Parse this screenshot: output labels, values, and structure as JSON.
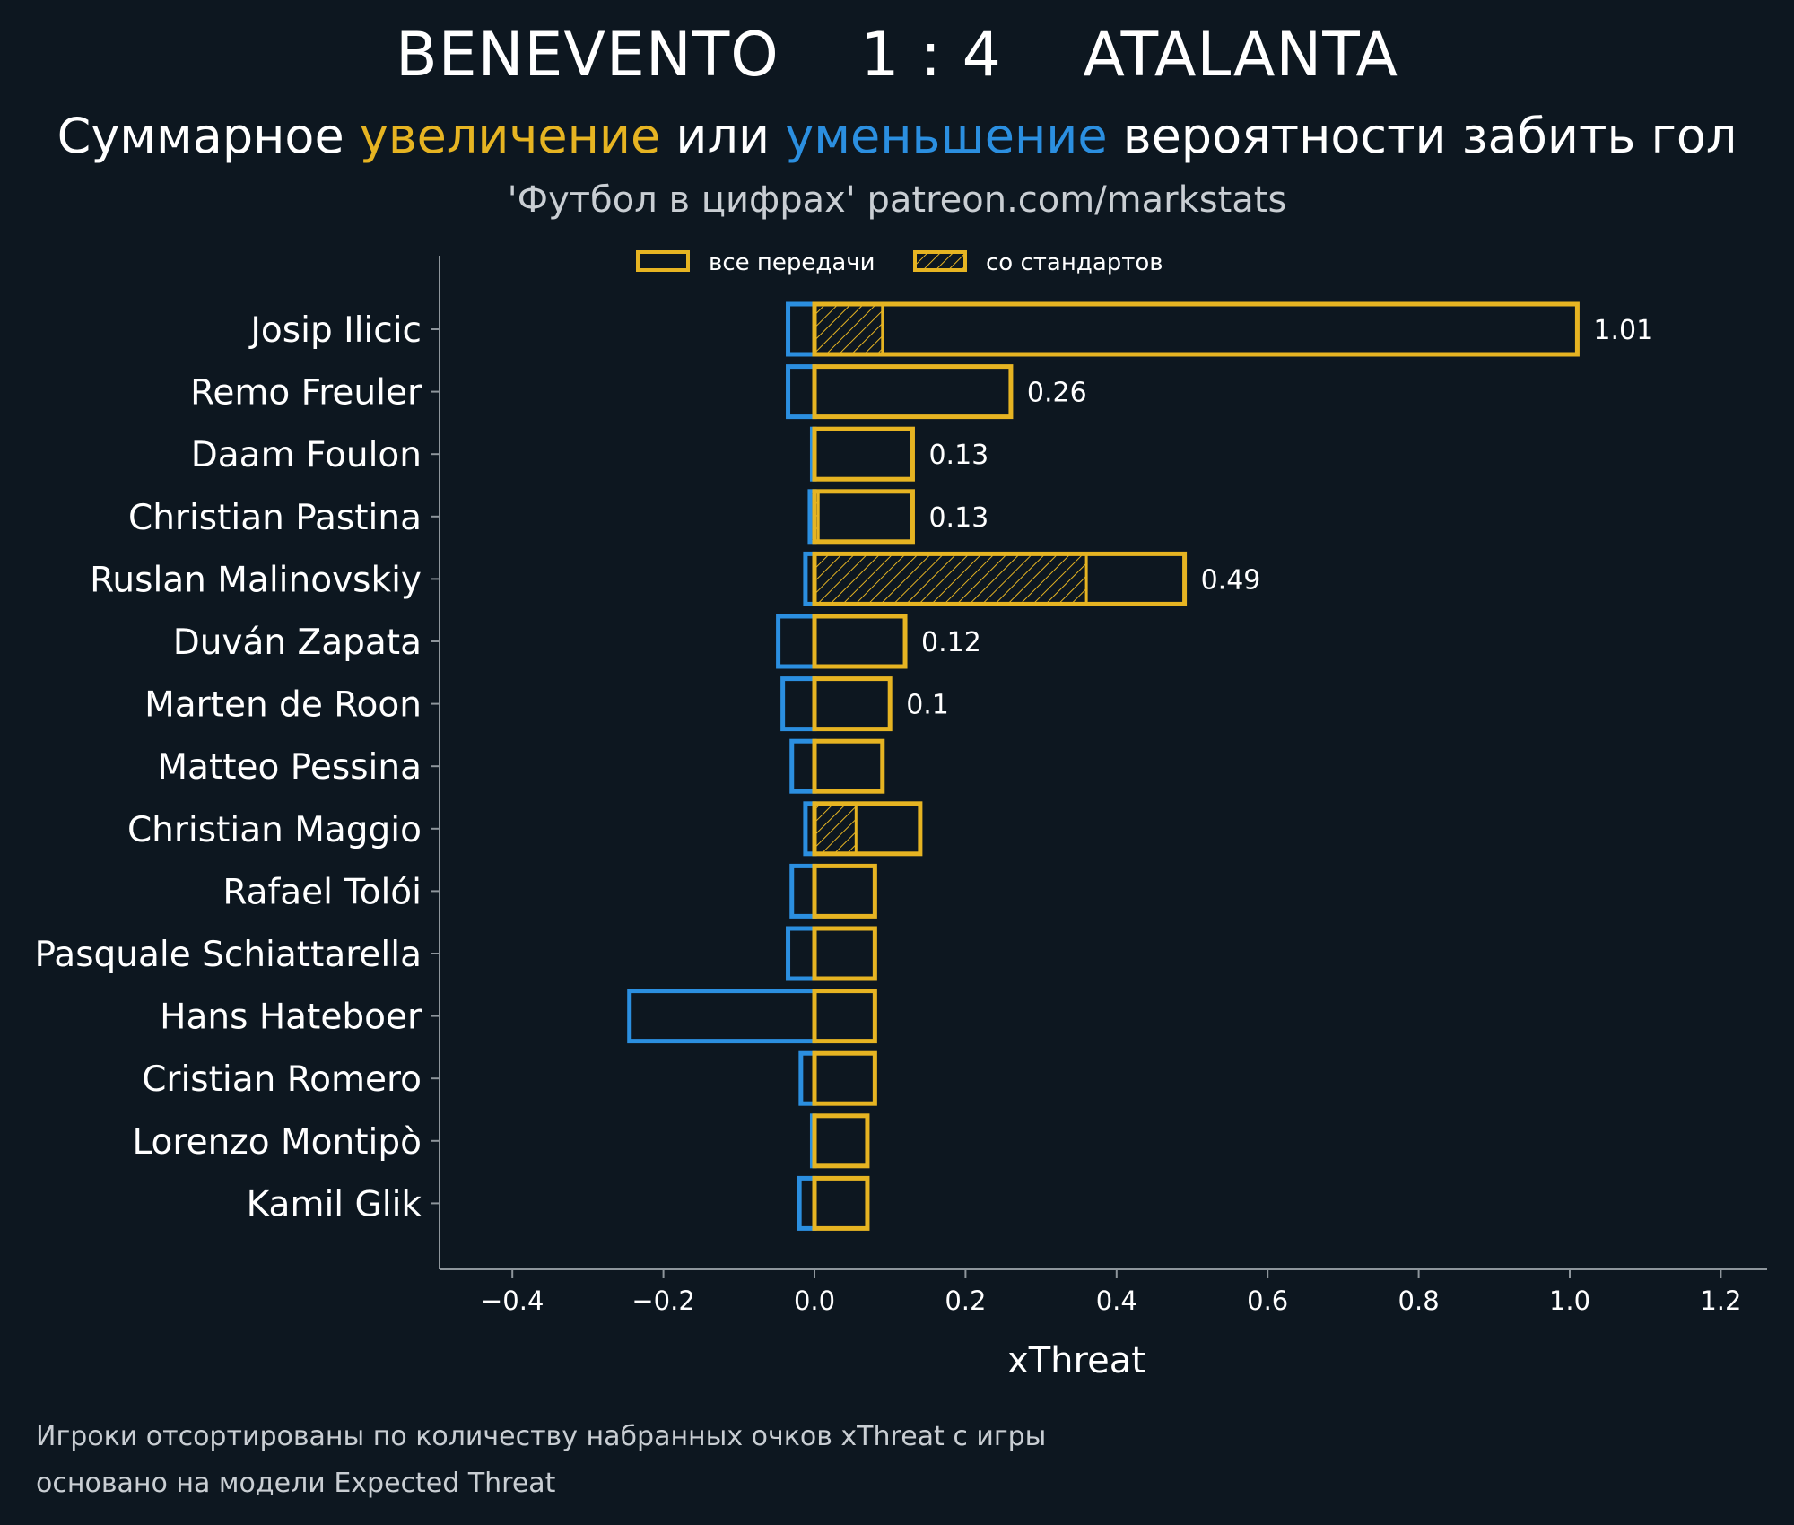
{
  "header": {
    "title": "BENEVENTO    1 : 4    ATALANTA",
    "subtitle_part1": "Суммарное ",
    "subtitle_increase": "увеличение",
    "subtitle_part2": " или ",
    "subtitle_decrease": "уменьшение",
    "subtitle_part3": " вероятности забить гол",
    "source": "'Футбол в цифрах' patreon.com/markstats"
  },
  "footnotes": {
    "line1": "Игроки отсортированы по количеству набранных очков xThreat с игры",
    "line2": "основано на модели Expected Threat"
  },
  "colors": {
    "background": "#0d1720",
    "increase": "#e6b422",
    "decrease": "#2b8fe0",
    "axis": "#8e969c"
  },
  "chart_data": {
    "type": "bar",
    "orientation": "horizontal",
    "xlabel": "xThreat",
    "ylabel": "",
    "xlim": [
      -0.5,
      1.26
    ],
    "xticks": [
      -0.4,
      -0.2,
      0.0,
      0.2,
      0.4,
      0.6,
      0.8,
      1.0,
      1.2
    ],
    "xtick_labels": [
      "−0.4",
      "−0.2",
      "0.0",
      "0.2",
      "0.4",
      "0.6",
      "0.8",
      "1.0",
      "1.2"
    ],
    "grid": false,
    "legend": {
      "placement": "top-center",
      "entries": [
        "все передачи",
        "со стандартов"
      ]
    },
    "categories": [
      "Josip Ilicic",
      "Remo Freuler",
      "Daam Foulon",
      "Christian Pastina",
      "Ruslan Malinovskiy",
      "Duván Zapata",
      "Marten de Roon",
      "Matteo Pessina",
      "Christian Maggio",
      "Rafael Tolói",
      "Pasquale Schiattarella",
      "Hans Hateboer",
      "Cristian Romero",
      "Lorenzo Montipò",
      "Kamil Glik"
    ],
    "series": [
      {
        "name": "все передачи",
        "role": "increase",
        "values": [
          1.01,
          0.26,
          0.13,
          0.13,
          0.49,
          0.12,
          0.1,
          0.09,
          0.14,
          0.08,
          0.08,
          0.08,
          0.08,
          0.07,
          0.07
        ]
      },
      {
        "name": "со стандартов",
        "role": "increase-set-pieces",
        "values": [
          0.09,
          0,
          0,
          0.005,
          0.36,
          0,
          0,
          0,
          0.055,
          0,
          0,
          0,
          0,
          0,
          0
        ]
      },
      {
        "role": "decrease",
        "values": [
          -0.035,
          -0.035,
          -0.003,
          -0.006,
          -0.012,
          -0.048,
          -0.042,
          -0.03,
          -0.012,
          -0.03,
          -0.035,
          -0.245,
          -0.018,
          -0.003,
          -0.02
        ]
      }
    ],
    "value_labels": [
      "1.01",
      "0.26",
      "0.13",
      "0.13",
      "0.49",
      "0.12",
      "0.1",
      "",
      "",
      "",
      "",
      "",
      "",
      "",
      ""
    ]
  }
}
